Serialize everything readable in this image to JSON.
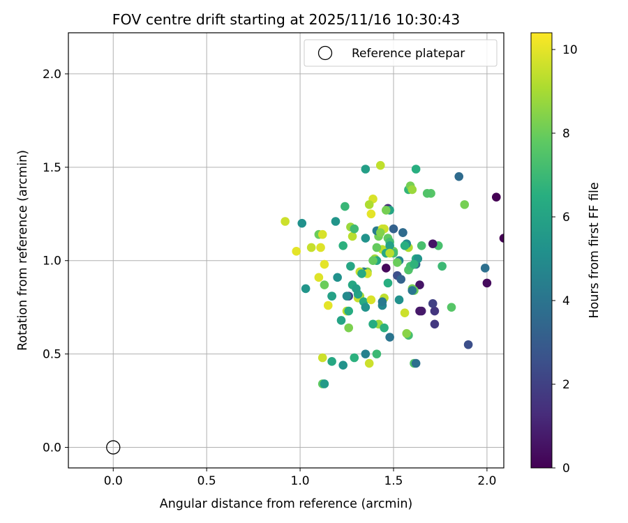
{
  "chart_data": {
    "type": "scatter",
    "title": "FOV centre drift starting at 2025/11/16 10:30:43",
    "xlabel": "Angular distance from reference (arcmin)",
    "ylabel": "Rotation from reference (arcmin)",
    "xlim": [
      -0.24,
      2.09
    ],
    "ylim": [
      -0.11,
      2.22
    ],
    "xticks": [
      0.0,
      0.5,
      1.0,
      1.5,
      2.0
    ],
    "xtick_labels": [
      "0.0",
      "0.5",
      "1.0",
      "1.5",
      "2.0"
    ],
    "yticks": [
      0.0,
      0.5,
      1.0,
      1.5,
      2.0
    ],
    "ytick_labels": [
      "0.0",
      "0.5",
      "1.0",
      "1.5",
      "2.0"
    ],
    "grid": true,
    "legend": {
      "label": "Reference platepar",
      "location": "upper right"
    },
    "reference_point": {
      "x": 0.0,
      "y": 0.0
    },
    "colorbar": {
      "label": "Hours from first FF file",
      "min": 0,
      "max": 10.4,
      "ticks": [
        0,
        2,
        4,
        6,
        8,
        10
      ],
      "tick_labels": [
        "0",
        "2",
        "4",
        "6",
        "8",
        "10"
      ],
      "colormap": "viridis"
    },
    "series": [
      {
        "name": "FOV centre drift",
        "x": [
          1.46,
          1.39,
          1.61,
          1.47,
          1.43,
          1.58,
          1.52,
          1.42,
          1.58,
          1.56,
          1.58,
          1.57,
          1.62,
          1.55,
          1.65,
          1.61,
          1.53,
          1.42,
          1.58,
          1.64,
          1.57,
          1.53,
          1.65,
          1.6,
          1.56,
          1.72,
          1.64,
          1.5,
          1.62,
          1.7,
          1.54,
          1.44,
          1.41,
          1.44,
          1.4,
          1.44,
          1.41,
          1.36,
          1.27,
          1.42,
          1.32,
          1.31,
          1.34,
          1.34,
          1.35,
          1.31,
          1.24,
          1.28,
          1.35,
          1.2,
          1.38,
          1.28,
          1.26,
          1.22,
          1.17,
          1.1,
          1.17,
          1.12,
          1.03,
          1.13,
          1.26,
          1.29,
          1.25,
          1.35,
          1.37,
          1.26,
          1.12,
          1.11,
          1.15,
          1.06,
          1.1,
          0.98,
          0.92,
          1.01,
          1.13,
          1.27,
          1.23,
          1.19,
          1.25,
          1.36,
          1.41,
          1.38,
          1.46,
          1.47,
          1.45,
          1.48,
          1.5,
          1.48,
          1.46,
          1.43,
          1.37,
          1.29,
          1.32,
          1.35,
          1.39,
          1.45,
          1.45,
          1.48,
          1.52,
          1.5,
          1.46,
          1.48,
          1.55,
          1.59,
          1.61,
          1.68,
          1.74,
          1.76,
          1.88,
          1.85,
          1.99,
          2.0,
          2.05,
          2.09,
          1.9,
          1.81,
          1.72,
          1.71,
          1.71,
          1.62,
          1.62,
          1.6,
          1.48,
          1.47,
          1.41,
          1.39,
          1.33,
          1.3,
          1.23,
          1.17,
          1.13,
          1.12,
          1.48,
          1.6,
          1.63,
          1.59,
          1.61,
          1.44
        ],
        "colorvalue": [
          0.2,
          9.8,
          7.5,
          1.2,
          9.4,
          9.1,
          2.5,
          8.0,
          7.5,
          9.6,
          7.2,
          8.5,
          6.5,
          3.5,
          0.8,
          7.5,
          5.2,
          8.1,
          6.8,
          0.6,
          5.0,
          4.8,
          7.3,
          8.2,
          6.5,
          1.6,
          0.7,
          8.0,
          6.4,
          7.6,
          3.3,
          9.3,
          4.3,
          9.7,
          8.9,
          4.8,
          6.2,
          8.3,
          6.1,
          8.8,
          9.0,
          9.5,
          6.3,
          4.2,
          5.3,
          6.0,
          6.9,
          9.3,
          5.8,
          5.2,
          9.8,
          6.2,
          2.0,
          6.0,
          4.8,
          9.9,
          6.2,
          7.8,
          5.4,
          8.0,
          8.3,
          6.6,
          9.3,
          4.5,
          9.6,
          6.4,
          9.6,
          9.9,
          10.0,
          9.5,
          8.0,
          10.0,
          9.6,
          5.2,
          10.0,
          8.8,
          6.6,
          5.4,
          4.9,
          9.7,
          7.9,
          10.0,
          8.0,
          7.8,
          9.6,
          7.2,
          3.2,
          6.1,
          8.2,
          8.4,
          9.1,
          7.1,
          9.5,
          5.3,
          7.9,
          9.4,
          6.6,
          8.9,
          8.0,
          7.2,
          6.2,
          4.0,
          3.6,
          8.2,
          8.0,
          7.5,
          7.3,
          7.0,
          8.2,
          3.6,
          3.8,
          0.3,
          0.0,
          0.0,
          2.5,
          7.6,
          1.7,
          2.0,
          0.6,
          3.5,
          3.8,
          4.1,
          5.9,
          6.5,
          7.0,
          6.4,
          6.3,
          5.8,
          5.3,
          5.9,
          5.6,
          9.8,
          9.3,
          8.8,
          5.4,
          7.3,
          6.7,
          4.2
        ],
        "y": [
          0.96,
          1.33,
          0.45,
          1.28,
          1.51,
          1.07,
          0.92,
          1.16,
          0.95,
          0.72,
          0.6,
          0.61,
          1.49,
          1.15,
          0.73,
          0.98,
          0.79,
          1.13,
          1.38,
          0.87,
          1.09,
          1.0,
          1.08,
          0.85,
          1.08,
          0.73,
          0.73,
          1.05,
          1.01,
          1.36,
          0.9,
          1.06,
          1.16,
          1.17,
          1.01,
          0.76,
          1.0,
          0.94,
          0.97,
          0.66,
          0.81,
          0.8,
          0.78,
          0.94,
          0.75,
          0.82,
          1.29,
          1.13,
          1.49,
          0.91,
          0.79,
          0.87,
          0.81,
          0.68,
          0.81,
          0.91,
          0.46,
          0.34,
          0.85,
          0.87,
          0.64,
          0.48,
          0.73,
          0.5,
          0.45,
          0.73,
          0.48,
          1.07,
          0.76,
          1.07,
          1.14,
          1.05,
          1.21,
          1.2,
          0.98,
          1.18,
          1.08,
          1.21,
          0.81,
          0.93,
          1.07,
          1.25,
          1.04,
          1.12,
          1.17,
          1.1,
          1.17,
          1.27,
          1.27,
          1.15,
          1.3,
          1.17,
          0.94,
          1.12,
          1.0,
          0.8,
          0.64,
          1.07,
          0.99,
          1.04,
          1.04,
          0.59,
          1.15,
          1.4,
          0.84,
          1.36,
          1.08,
          0.97,
          1.3,
          1.45,
          0.96,
          0.88,
          1.34,
          1.12,
          0.55,
          0.75,
          0.66,
          0.77,
          1.09,
          0.98,
          0.45,
          0.84,
          1.08,
          0.88,
          0.5,
          0.66,
          0.93,
          0.85,
          0.44,
          0.81,
          0.34,
          1.14,
          1.04,
          1.38,
          1.01,
          0.97,
          0.98,
          0.78
        ]
      }
    ]
  }
}
